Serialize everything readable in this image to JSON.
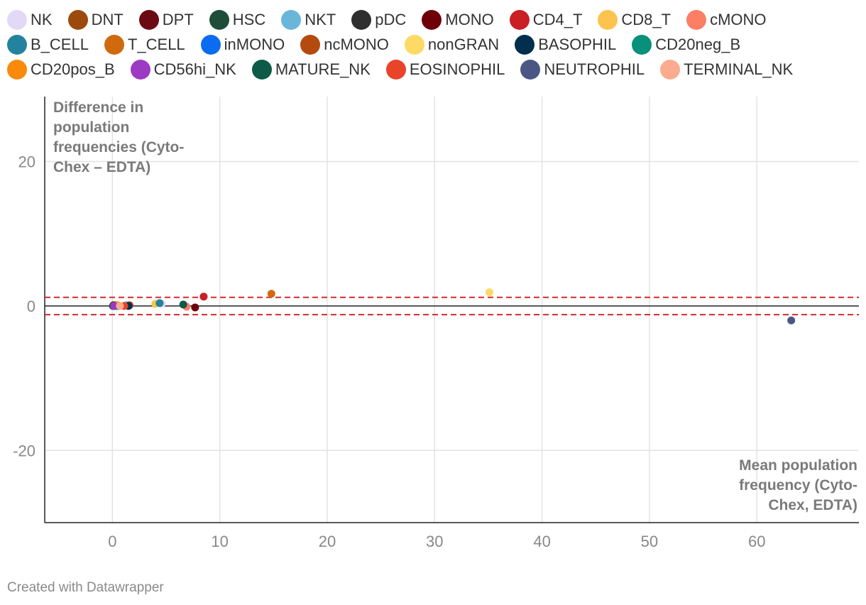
{
  "chart_data": {
    "type": "scatter",
    "title": "",
    "xlabel": "Mean population frequency (Cyto-Chex, EDTA)",
    "ylabel": "Difference in population frequencies (Cyto-Chex – EDTA)",
    "xlim": [
      -6.3,
      69.5
    ],
    "ylim": [
      -30,
      29
    ],
    "x_ticks": [
      0,
      10,
      20,
      30,
      40,
      50,
      60
    ],
    "y_ticks": [
      20,
      0,
      -20
    ],
    "grid": true,
    "zero_line": 0,
    "limits_of_agreement": [
      1.2,
      -1.2
    ],
    "series": [
      {
        "name": "NK",
        "color": "#e2d9f7",
        "x": [
          4.6
        ],
        "y": [
          0.3
        ]
      },
      {
        "name": "DNT",
        "color": "#9c4a0c",
        "x": [
          0.3
        ],
        "y": [
          0.1
        ]
      },
      {
        "name": "DPT",
        "color": "#6b0a13",
        "x": [
          0.1
        ],
        "y": [
          0.1
        ]
      },
      {
        "name": "HSC",
        "color": "#1e4d3a",
        "x": [
          0.05
        ],
        "y": [
          0.0
        ]
      },
      {
        "name": "NKT",
        "color": "#6ab6da",
        "x": [
          1.3
        ],
        "y": [
          0.1
        ]
      },
      {
        "name": "pDC",
        "color": "#2f2f2f",
        "x": [
          0.4
        ],
        "y": [
          0.0
        ]
      },
      {
        "name": "MONO",
        "color": "#6e0009",
        "x": [
          7.7
        ],
        "y": [
          -0.2
        ]
      },
      {
        "name": "CD4_T",
        "color": "#c91f25",
        "x": [
          8.5
        ],
        "y": [
          1.3
        ]
      },
      {
        "name": "CD8_T",
        "color": "#fcc44e",
        "x": [
          4.0
        ],
        "y": [
          0.3
        ]
      },
      {
        "name": "cMONO",
        "color": "#fb7e65",
        "x": [
          6.9
        ],
        "y": [
          -0.1
        ]
      },
      {
        "name": "B_CELL",
        "color": "#23839e",
        "x": [
          4.4
        ],
        "y": [
          0.4
        ]
      },
      {
        "name": "T_CELL",
        "color": "#d1690e",
        "x": [
          14.8
        ],
        "y": [
          1.7
        ]
      },
      {
        "name": "inMONO",
        "color": "#0b6cf0",
        "x": [
          0.6
        ],
        "y": [
          0.0
        ]
      },
      {
        "name": "ncMONO",
        "color": "#b44a0d",
        "x": [
          1.6
        ],
        "y": [
          0.1
        ]
      },
      {
        "name": "nonGRAN",
        "color": "#fdd965",
        "x": [
          35.1
        ],
        "y": [
          1.9
        ]
      },
      {
        "name": "BASOPHIL",
        "color": "#022f4e",
        "x": [
          1.5
        ],
        "y": [
          0.0
        ]
      },
      {
        "name": "CD20neg_B",
        "color": "#07907a",
        "x": [
          0.2
        ],
        "y": [
          0.0
        ]
      },
      {
        "name": "CD20pos_B",
        "color": "#f98a0c",
        "x": [
          0.5
        ],
        "y": [
          0.1
        ]
      },
      {
        "name": "CD56hi_NK",
        "color": "#9c3ac3",
        "x": [
          0.15
        ],
        "y": [
          0.0
        ]
      },
      {
        "name": "MATURE_NK",
        "color": "#0c5a47",
        "x": [
          6.6
        ],
        "y": [
          0.2
        ]
      },
      {
        "name": "EOSINOPHIL",
        "color": "#e9432a",
        "x": [
          1.1
        ],
        "y": [
          0.0
        ]
      },
      {
        "name": "NEUTROPHIL",
        "color": "#4a5784",
        "x": [
          63.2
        ],
        "y": [
          -2.0
        ]
      },
      {
        "name": "TERMINAL_NK",
        "color": "#fdab8e",
        "x": [
          0.7
        ],
        "y": [
          0.0
        ]
      }
    ]
  },
  "legend_rows": [
    [
      0,
      1,
      2,
      3,
      4,
      5,
      6,
      7,
      8,
      9
    ],
    [
      10,
      11,
      12,
      13,
      14,
      15,
      16
    ],
    [
      17,
      18,
      19,
      20,
      21,
      22
    ]
  ],
  "ylabel_lines": [
    "Difference in",
    "population",
    "frequencies (Cyto-",
    "Chex – EDTA)"
  ],
  "xlabel_lines": [
    "Mean population",
    "frequency (Cyto-",
    "Chex, EDTA)"
  ],
  "footer": {
    "credit": "Created with Datawrapper"
  },
  "colors": {
    "grid": "#e3e3e3",
    "axis": "#222222",
    "loa": "#d42a2a",
    "zero": "#222222"
  }
}
